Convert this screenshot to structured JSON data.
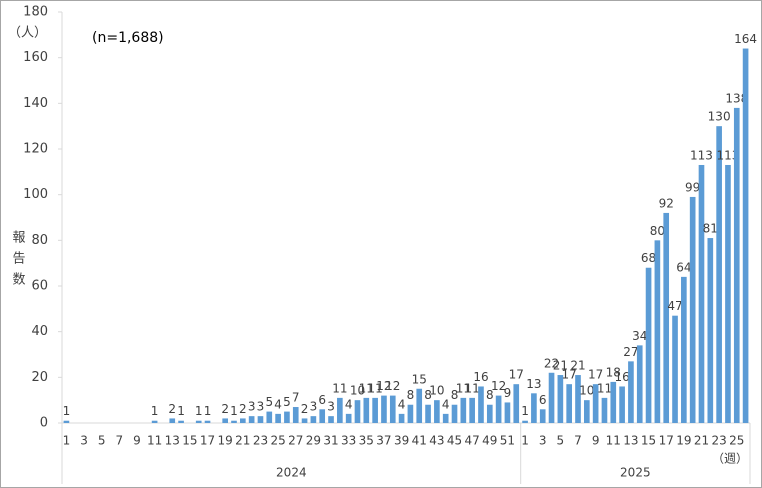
{
  "chart_data": {
    "type": "bar",
    "annotation": "(n=1,688)",
    "y_label": "報告数",
    "y_unit": "（人）",
    "x_unit": "（週）",
    "color": "#5b9bd5",
    "ylim": [
      0,
      180
    ],
    "yticks": [
      0,
      20,
      40,
      60,
      80,
      100,
      120,
      140,
      160,
      180
    ],
    "groups": [
      {
        "name": "2024",
        "categories": [
          "1",
          null,
          "3",
          null,
          "5",
          null,
          "7",
          null,
          "9",
          null,
          "11",
          null,
          "13",
          null,
          "15",
          null,
          "17",
          null,
          "19",
          null,
          "21",
          null,
          "23",
          null,
          "25",
          null,
          "27",
          null,
          "29",
          null,
          "31",
          null,
          "33",
          null,
          "35",
          null,
          "37",
          null,
          "39",
          null,
          "41",
          null,
          "43",
          null,
          "45",
          null,
          "47",
          null,
          "49",
          null,
          "51",
          null
        ],
        "values": [
          1,
          0,
          0,
          0,
          0,
          0,
          0,
          0,
          0,
          0,
          1,
          0,
          2,
          1,
          0,
          1,
          1,
          0,
          2,
          1,
          2,
          3,
          3,
          5,
          4,
          5,
          7,
          2,
          3,
          6,
          3,
          11,
          4,
          10,
          11,
          11,
          12,
          12,
          4,
          8,
          15,
          8,
          10,
          4,
          8,
          11,
          11,
          16,
          8,
          12,
          9,
          17
        ],
        "value_labels": [
          "1",
          null,
          null,
          null,
          null,
          null,
          null,
          null,
          null,
          null,
          "1",
          null,
          "2",
          "1",
          null,
          "1",
          "1",
          null,
          "2",
          "1",
          "2",
          "3",
          "3",
          "5",
          "4",
          "5",
          "7",
          "2",
          "3",
          "6",
          "3",
          "11",
          "4",
          "10",
          "11",
          "11",
          "12",
          "12",
          "4",
          "8",
          "15",
          "8",
          "10",
          "4",
          "8",
          "11",
          "11",
          "16",
          "8",
          "12",
          "9",
          "17"
        ]
      },
      {
        "name": "2025",
        "categories": [
          "1",
          null,
          "3",
          null,
          "5",
          null,
          "7",
          null,
          "9",
          null,
          "11",
          null,
          "13",
          null,
          "15",
          null,
          "17",
          null,
          "19",
          null,
          "21",
          null,
          "23",
          null,
          "25",
          null
        ],
        "values": [
          1,
          13,
          6,
          22,
          21,
          17,
          21,
          10,
          17,
          11,
          18,
          16,
          27,
          34,
          68,
          80,
          92,
          47,
          64,
          99,
          113,
          81,
          130,
          113,
          138,
          164
        ],
        "value_labels": [
          "1",
          "13",
          "6",
          "22",
          "21",
          "17",
          "21",
          "10",
          "17",
          "11",
          "18",
          "16",
          "27",
          "34",
          "68",
          "80",
          "92",
          "47",
          "64",
          "99",
          "113",
          "81",
          "130",
          "113",
          "138",
          "164"
        ]
      }
    ]
  }
}
